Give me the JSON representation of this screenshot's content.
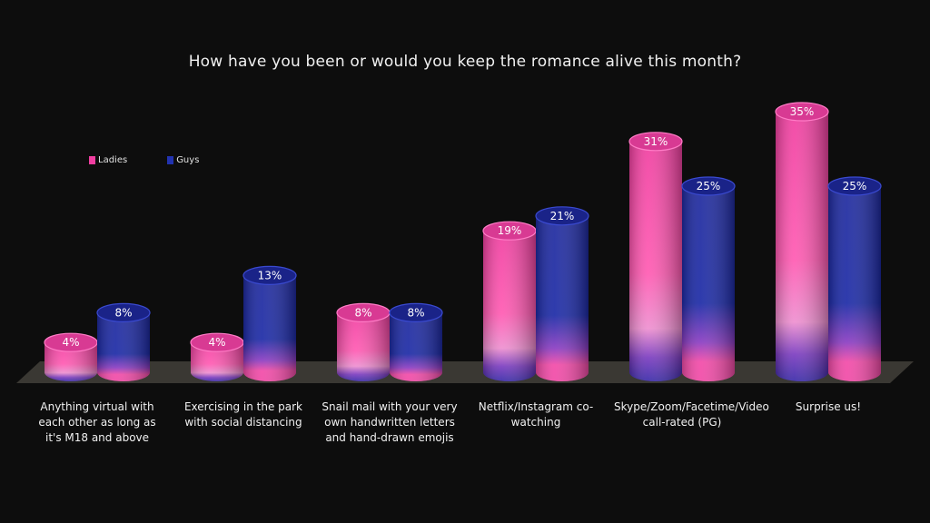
{
  "chart_data": {
    "type": "bar",
    "title": "How have you been or would you keep the romance alive this month?",
    "categories": [
      "Anything virtual with each other as long as it's M18 and above",
      "Exercising in the park with social distancing",
      "Snail mail with your very own handwritten letters and hand-drawn emojis",
      "Netflix/Instagram co-watching",
      "Skype/Zoom/Facetime/Video call-rated (PG)",
      "Surprise us!"
    ],
    "series": [
      {
        "name": "Ladies",
        "values": [
          4,
          4,
          8,
          19,
          31,
          35
        ],
        "labels": [
          "4%",
          "4%",
          "8%",
          "19%",
          "31%",
          "35%"
        ],
        "color": "#f03ea0"
      },
      {
        "name": "Guys",
        "values": [
          8,
          13,
          8,
          21,
          25,
          25
        ],
        "labels": [
          "8%",
          "13%",
          "8%",
          "21%",
          "25%",
          "25%"
        ],
        "color": "#1f2a9e"
      }
    ],
    "ylim": [
      0,
      35
    ],
    "legend_position": "top-left",
    "grid": false,
    "xlabel": "",
    "ylabel": ""
  }
}
